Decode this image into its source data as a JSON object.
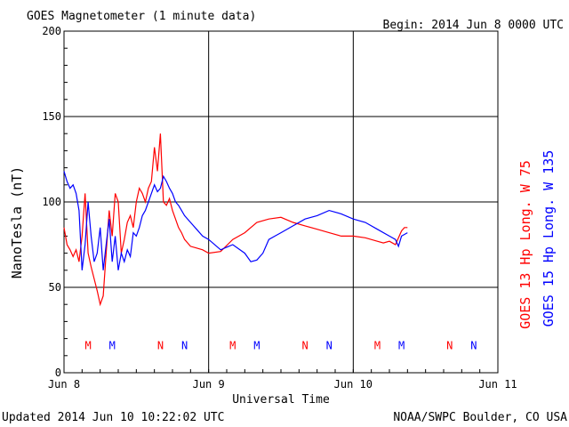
{
  "header": {
    "title": "GOES Magnetometer (1 minute data)",
    "begin": "Begin:  2014 Jun 8 0000 UTC"
  },
  "footer": {
    "updated": "Updated 2014 Jun 10 10:22:02 UTC",
    "credit": "NOAA/SWPC Boulder, CO USA"
  },
  "colors": {
    "goes13": "#ff0000",
    "goes15": "#0000ff",
    "grid": "#000000",
    "background": "#ffffff"
  },
  "chart_data": {
    "type": "line",
    "title": "GOES Magnetometer (1 minute data)",
    "xlabel": "Universal Time",
    "ylabel": "NanoTesla (nT)",
    "xlim": [
      0,
      72
    ],
    "ylim": [
      0,
      200
    ],
    "x_unit": "hours since 2014 Jun 8 0000 UTC",
    "x_ticks": [
      {
        "x": 0,
        "label": "Jun 8"
      },
      {
        "x": 24,
        "label": "Jun 9"
      },
      {
        "x": 48,
        "label": "Jun 10"
      },
      {
        "x": 72,
        "label": "Jun 11"
      }
    ],
    "y_ticks": [
      0,
      50,
      100,
      150,
      200
    ],
    "grid": true,
    "series": [
      {
        "name": "GOES 13 Hp  Long. W 75",
        "color": "#ff0000",
        "x": [
          0,
          0.5,
          1,
          1.5,
          2,
          2.5,
          3,
          3.5,
          4,
          4.5,
          5,
          5.5,
          6,
          6.5,
          7,
          7.5,
          8,
          8.5,
          9,
          9.5,
          10,
          10.5,
          11,
          11.5,
          12,
          12.5,
          13,
          13.5,
          14,
          14.5,
          15,
          15.5,
          16,
          16.5,
          17,
          17.5,
          18,
          18.5,
          19,
          19.5,
          20,
          21,
          22,
          23,
          24,
          26,
          28,
          30,
          32,
          34,
          36,
          38,
          40,
          42,
          44,
          46,
          48,
          50,
          52,
          53,
          54,
          55,
          56,
          56.5,
          57
        ],
        "values": [
          85,
          75,
          72,
          68,
          72,
          65,
          80,
          105,
          70,
          62,
          55,
          48,
          40,
          45,
          70,
          95,
          80,
          105,
          100,
          70,
          78,
          88,
          92,
          85,
          100,
          108,
          105,
          100,
          108,
          112,
          132,
          118,
          140,
          100,
          98,
          102,
          95,
          90,
          85,
          82,
          78,
          74,
          73,
          72,
          70,
          71,
          78,
          82,
          88,
          90,
          91,
          88,
          86,
          84,
          82,
          80,
          80,
          79,
          77,
          76,
          77,
          75,
          83,
          85,
          85
        ]
      },
      {
        "name": "GOES 15 Hp  Long. W 135",
        "color": "#0000ff",
        "x": [
          0,
          0.5,
          1,
          1.5,
          2,
          2.5,
          3,
          3.5,
          4,
          4.5,
          5,
          5.5,
          6,
          6.5,
          7,
          7.5,
          8,
          8.5,
          9,
          9.5,
          10,
          10.5,
          11,
          11.5,
          12,
          12.5,
          13,
          13.5,
          14,
          14.5,
          15,
          15.5,
          16,
          16.5,
          17,
          17.5,
          18,
          18.5,
          19,
          19.5,
          20,
          21,
          22,
          23,
          24,
          26,
          28,
          30,
          31,
          32,
          33,
          34,
          35,
          36,
          38,
          40,
          42,
          44,
          46,
          48,
          50,
          52,
          54,
          55,
          55.5,
          56,
          57
        ],
        "values": [
          118,
          112,
          108,
          110,
          105,
          95,
          60,
          75,
          100,
          80,
          65,
          70,
          85,
          60,
          75,
          90,
          65,
          80,
          60,
          70,
          65,
          72,
          68,
          82,
          80,
          85,
          92,
          95,
          100,
          105,
          110,
          106,
          108,
          115,
          112,
          108,
          105,
          100,
          98,
          95,
          92,
          88,
          84,
          80,
          78,
          72,
          75,
          70,
          65,
          66,
          70,
          78,
          80,
          82,
          86,
          90,
          92,
          95,
          93,
          90,
          88,
          84,
          80,
          78,
          74,
          80,
          82
        ]
      }
    ],
    "markers": {
      "description": "Local Midnight (M) and Noon (N) markers per satellite",
      "y_level": 16,
      "items": [
        {
          "x": 4,
          "label": "M",
          "series": "GOES 13"
        },
        {
          "x": 8,
          "label": "M",
          "series": "GOES 15"
        },
        {
          "x": 16,
          "label": "N",
          "series": "GOES 13"
        },
        {
          "x": 20,
          "label": "N",
          "series": "GOES 15"
        },
        {
          "x": 28,
          "label": "M",
          "series": "GOES 13"
        },
        {
          "x": 32,
          "label": "M",
          "series": "GOES 15"
        },
        {
          "x": 40,
          "label": "N",
          "series": "GOES 13"
        },
        {
          "x": 44,
          "label": "N",
          "series": "GOES 15"
        },
        {
          "x": 52,
          "label": "M",
          "series": "GOES 13"
        },
        {
          "x": 56,
          "label": "M",
          "series": "GOES 15"
        },
        {
          "x": 64,
          "label": "N",
          "series": "GOES 13"
        },
        {
          "x": 68,
          "label": "N",
          "series": "GOES 15"
        }
      ]
    },
    "legend_position": "right-vertical"
  }
}
